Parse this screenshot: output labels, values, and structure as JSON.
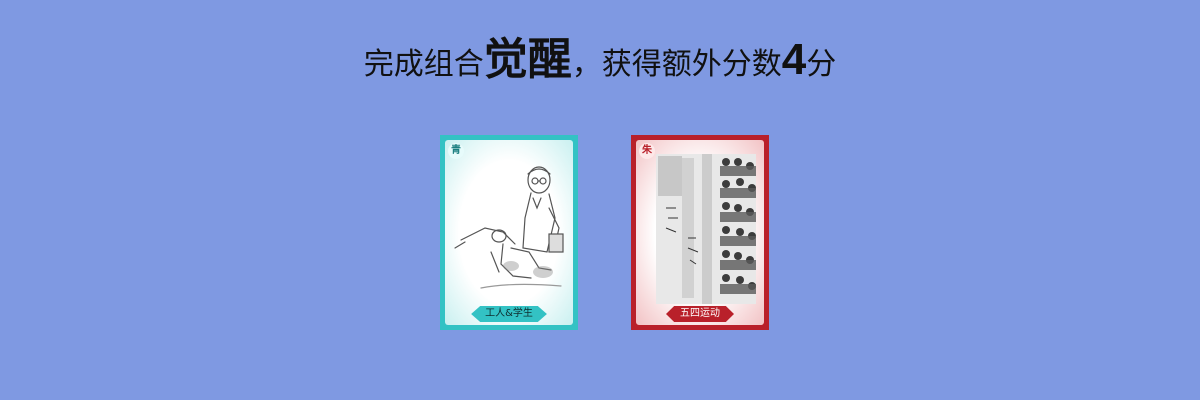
{
  "headline": {
    "part1": "完成组合",
    "emphasis": "觉醒",
    "part2": "，获得额外分数",
    "score": "4",
    "unit": "分"
  },
  "cards": [
    {
      "badge": "青",
      "label": "工人&学生",
      "color": "#33c2c4",
      "art_icon": "worker-student-sketch"
    },
    {
      "badge": "朱",
      "label": "五四运动",
      "color": "#b9202a",
      "art_icon": "may-fourth-crowd-photo"
    }
  ],
  "background_color": "#7f99e2"
}
